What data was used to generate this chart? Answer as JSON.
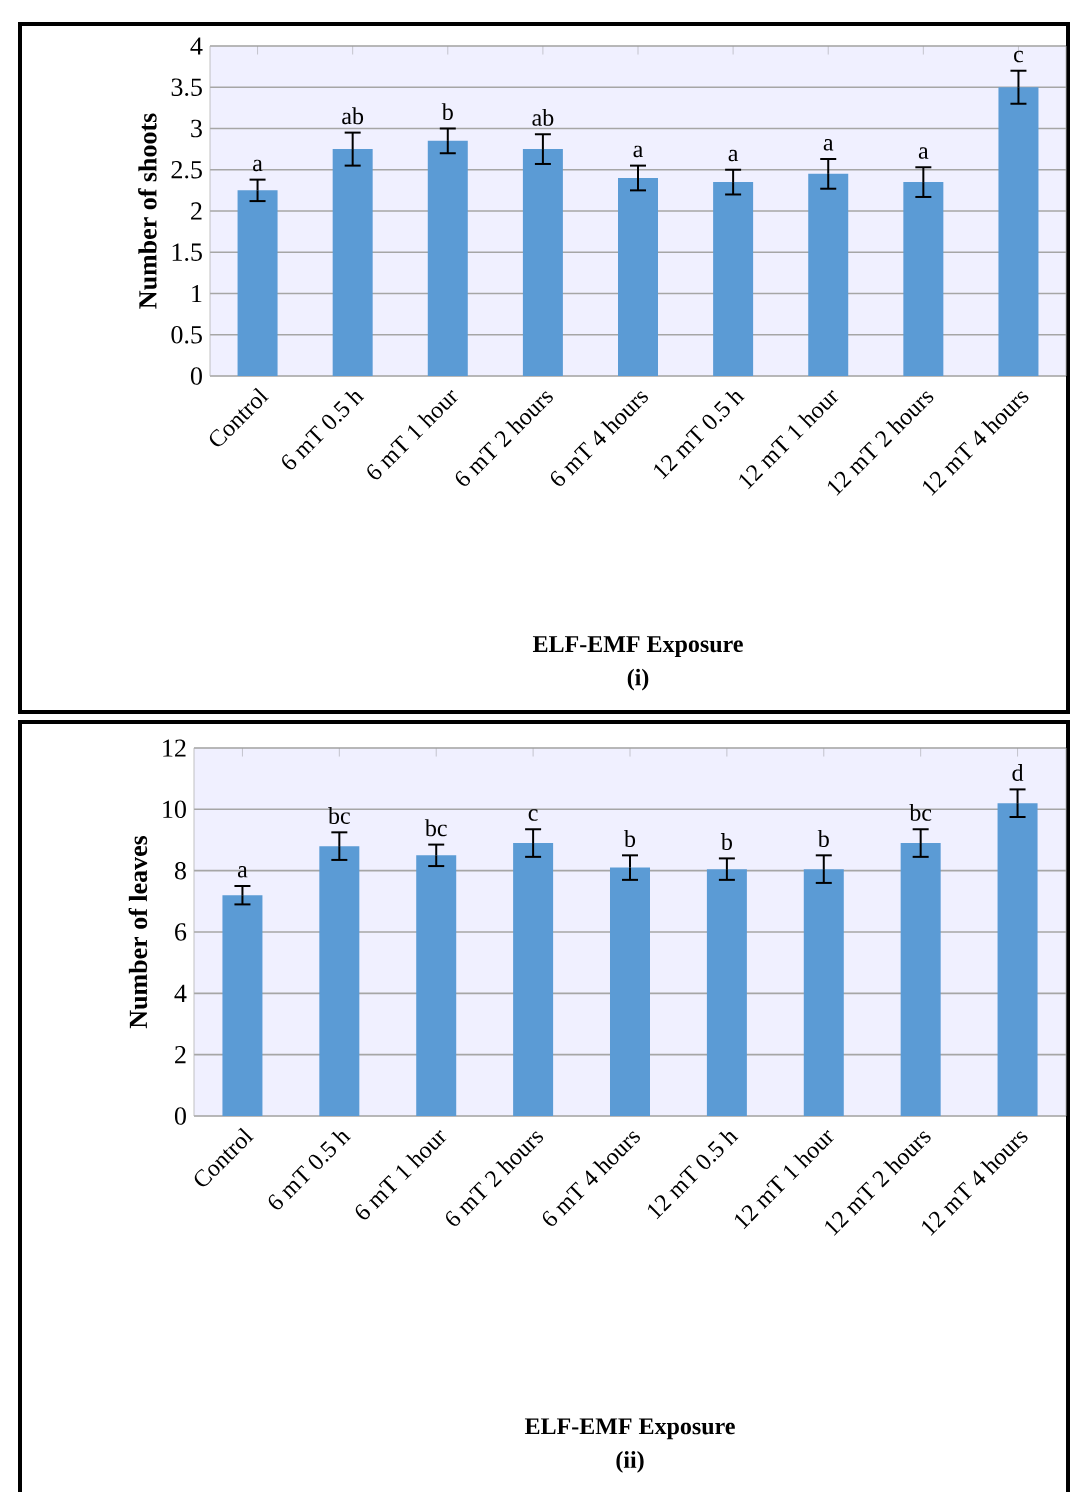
{
  "chart_data": [
    {
      "type": "bar",
      "xlabel": "ELF-EMF Exposure",
      "ylabel": "Number of shoots",
      "categories": [
        "Control",
        "6 mT 0.5 h",
        "6 mT 1 hour",
        "6 mT 2 hours",
        "6 mT 4 hours",
        "12 mT 0.5 h",
        "12 mT 1 hour",
        "12 mT 2 hours",
        "12 mT 4 hours"
      ],
      "values": [
        2.25,
        2.75,
        2.85,
        2.75,
        2.4,
        2.35,
        2.45,
        2.35,
        3.5
      ],
      "errors": [
        0.13,
        0.2,
        0.15,
        0.18,
        0.15,
        0.15,
        0.18,
        0.18,
        0.2
      ],
      "color": "#5b9bd5",
      "ylim": [
        0,
        4
      ],
      "yticks": [
        0,
        0.5,
        1,
        1.5,
        2,
        2.5,
        3,
        3.5,
        4
      ],
      "grid": "y",
      "annotations": [
        {
          "text": "a",
          "x": "Control",
          "y": 2.38
        },
        {
          "text": "ab",
          "x": "6 mT 0.5 h",
          "y": 2.95
        },
        {
          "text": "b",
          "x": "6 mT 1 hour",
          "y": 3.0
        },
        {
          "text": "ab",
          "x": "6 mT 2 hours",
          "y": 2.93
        },
        {
          "text": "a",
          "x": "6 mT 4 hours",
          "y": 2.55
        },
        {
          "text": "a",
          "x": "12 mT 0.5 h",
          "y": 2.5
        },
        {
          "text": "a",
          "x": "12 mT 1 hour",
          "y": 2.63
        },
        {
          "text": "a",
          "x": "12 mT 2 hours",
          "y": 2.53
        },
        {
          "text": "c",
          "x": "12 mT 4 hours",
          "y": 3.7
        },
        "(i)"
      ]
    },
    {
      "type": "bar",
      "xlabel": "ELF-EMF Exposure",
      "ylabel": "Number of leaves",
      "categories": [
        "Control",
        "6 mT 0.5 h",
        "6 mT 1 hour",
        "6 mT 2 hours",
        "6 mT 4 hours",
        "12 mT 0.5 h",
        "12 mT 1 hour",
        "12 mT 2 hours",
        "12 mT 4 hours"
      ],
      "values": [
        7.2,
        8.8,
        8.5,
        8.9,
        8.1,
        8.05,
        8.05,
        8.9,
        10.2
      ],
      "errors": [
        0.3,
        0.45,
        0.35,
        0.45,
        0.4,
        0.35,
        0.45,
        0.45,
        0.45
      ],
      "color": "#5b9bd5",
      "ylim": [
        0,
        12
      ],
      "yticks": [
        0,
        2,
        4,
        6,
        8,
        10,
        12
      ],
      "grid": "y",
      "annotations": [
        {
          "text": "a",
          "x": "Control",
          "y": 7.5
        },
        {
          "text": "bc",
          "x": "6 mT 0.5 h",
          "y": 9.25
        },
        {
          "text": "bc",
          "x": "6 mT 1 hour",
          "y": 8.85
        },
        {
          "text": "c",
          "x": "6 mT 2 hours",
          "y": 9.35
        },
        {
          "text": "b",
          "x": "6 mT 4 hours",
          "y": 8.5
        },
        {
          "text": "b",
          "x": "12 mT 0.5 h",
          "y": 8.4
        },
        {
          "text": "b",
          "x": "12 mT 1 hour",
          "y": 8.5
        },
        {
          "text": "bc",
          "x": "12 mT 2 hours",
          "y": 9.35
        },
        {
          "text": "d",
          "x": "12 mT 4 hours",
          "y": 10.65
        },
        "(ii)"
      ]
    }
  ]
}
